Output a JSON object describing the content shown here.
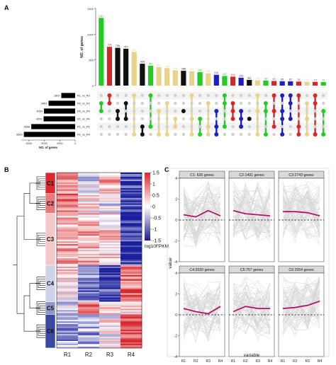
{
  "panel_labels": {
    "a": "A",
    "b": "B",
    "c": "C"
  },
  "colors": {
    "green": "#22cc22",
    "red": "#d62728",
    "blue": "#1f1fbf",
    "tan": "#e8d28c",
    "black": "#111111",
    "grey": "#cfcfcf"
  },
  "chart_data": [
    {
      "type": "bar",
      "panel": "A",
      "title": "",
      "ylabel": "NO. of genes",
      "ylim": [
        0,
        1500
      ],
      "y_ticks": [
        "0",
        "500",
        "1000",
        "1500"
      ],
      "intersections": [
        {
          "value": 1317,
          "color": "green",
          "sets": [
            1,
            2
          ]
        },
        {
          "value": 754,
          "color": "red",
          "sets": [
            0,
            1
          ]
        },
        {
          "value": 735,
          "color": "black",
          "sets": [
            2,
            3
          ]
        },
        {
          "value": 717,
          "color": "black",
          "sets": [
            1,
            3
          ]
        },
        {
          "value": 657,
          "color": "tan",
          "sets": [
            0,
            5
          ]
        },
        {
          "value": 425,
          "color": "black",
          "sets": [
            4,
            5
          ]
        },
        {
          "value": 387,
          "color": "green",
          "sets": [
            0,
            4
          ]
        },
        {
          "value": 360,
          "color": "tan",
          "sets": [
            2,
            5
          ]
        },
        {
          "value": 340,
          "color": "tan",
          "sets": [
            1,
            5
          ]
        },
        {
          "value": 298,
          "color": "tan",
          "sets": [
            3,
            4
          ]
        },
        {
          "value": 288,
          "color": "black",
          "sets": [
            2
          ]
        },
        {
          "value": 277,
          "color": "tan",
          "sets": [
            0,
            3,
            5
          ]
        },
        {
          "value": 260,
          "color": "green",
          "sets": [
            3,
            5
          ]
        },
        {
          "value": 238,
          "color": "tan",
          "sets": [
            1,
            4,
            5
          ]
        },
        {
          "value": 210,
          "color": "blue",
          "sets": [
            2,
            4,
            5
          ]
        },
        {
          "value": 187,
          "color": "green",
          "sets": [
            0,
            1,
            4
          ]
        },
        {
          "value": 174,
          "color": "red",
          "sets": [
            1,
            2,
            3
          ]
        },
        {
          "value": 153,
          "color": "blue",
          "sets": [
            2,
            3,
            4
          ]
        },
        {
          "value": 111,
          "color": "black",
          "sets": [
            3
          ]
        },
        {
          "value": 103,
          "color": "tan",
          "sets": [
            0,
            2,
            5
          ]
        },
        {
          "value": 98,
          "color": "green",
          "sets": [
            1,
            2,
            5
          ]
        },
        {
          "value": 90,
          "color": "red",
          "sets": [
            0,
            2,
            4
          ]
        },
        {
          "value": 85,
          "color": "blue",
          "sets": [
            0,
            2,
            3,
            5
          ]
        },
        {
          "value": 82,
          "color": "blue",
          "sets": [
            0,
            1,
            3
          ]
        },
        {
          "value": 78,
          "color": "red",
          "sets": [
            0,
            4,
            5
          ]
        },
        {
          "value": 74,
          "color": "tan",
          "sets": [
            1,
            3,
            5
          ]
        },
        {
          "value": 72,
          "color": "red",
          "sets": [
            0,
            1,
            5
          ]
        },
        {
          "value": 70,
          "color": "green",
          "sets": [
            2,
            5
          ]
        }
      ],
      "sets": [
        {
          "name": "R1_vs_R3",
          "value": 1803
        },
        {
          "name": "R3_vs_R2",
          "value": 3451
        },
        {
          "name": "R3_vs_R4",
          "value": 4054
        },
        {
          "name": "R1_vs_R4",
          "value": 4099
        },
        {
          "name": "R1_vs_R2",
          "value": 5698
        },
        {
          "name": "R1_vs_R4",
          "value": 6663
        }
      ],
      "set_xlabel": "NO. of genes",
      "set_ticks": [
        "6000",
        "4000",
        "2000",
        "0"
      ]
    },
    {
      "type": "heatmap",
      "panel": "B",
      "columns": [
        "R1",
        "R2",
        "R3",
        "R4"
      ],
      "clusters": [
        {
          "name": "C1",
          "color": "#d9282f"
        },
        {
          "name": "C2",
          "color": "#e8787c"
        },
        {
          "name": "C3",
          "color": "#f4c7c8"
        },
        {
          "name": "C4",
          "color": "#cfd3ea"
        },
        {
          "name": "C5",
          "color": "#8f97c8"
        },
        {
          "name": "C6",
          "color": "#3c47a0"
        }
      ],
      "colorbar_ticks": [
        "1.5",
        "1",
        "0.5",
        "0",
        "-0.5",
        "-1",
        "-1.5"
      ],
      "colorbar_label": "log10FPKM"
    },
    {
      "type": "line",
      "panel": "C",
      "xlabel": "variable",
      "ylabel": "value",
      "categories": [
        "R1",
        "R2",
        "R3",
        "R4"
      ],
      "ylim": [
        -4,
        4
      ],
      "y_ticks": [
        "-4",
        "-2",
        "0",
        "2",
        "4"
      ],
      "facets": [
        {
          "title": "C1: 626 genes",
          "values": [
            0.5,
            0.3,
            0.9,
            0.4
          ]
        },
        {
          "title": "C2:1491 genes",
          "values": [
            0.9,
            0.6,
            0.5,
            0.4
          ]
        },
        {
          "title": "C3:2743 genes",
          "values": [
            0.8,
            0.8,
            0.7,
            0.4
          ]
        },
        {
          "title": "C4:2020 genes",
          "values": [
            0.6,
            0.3,
            0.1,
            0.8
          ]
        },
        {
          "title": "C5:757 genes",
          "values": [
            0.3,
            0.8,
            0.6,
            0.6
          ]
        },
        {
          "title": "C6:2554 genes",
          "values": [
            0.6,
            0.7,
            0.9,
            1.3
          ]
        }
      ]
    }
  ]
}
